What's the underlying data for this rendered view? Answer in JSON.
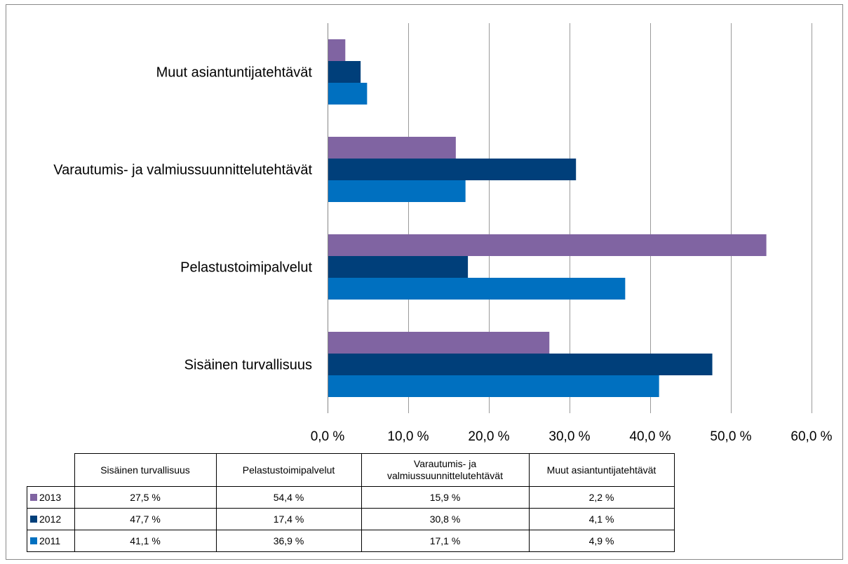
{
  "chart_data": {
    "type": "bar",
    "orientation": "horizontal",
    "categories": [
      "Sisäinen turvallisuus",
      "Pelastustoimipalvelut",
      "Varautumis- ja valmiussuunnittelutehtävät",
      "Muut asiantuntijatehtävät"
    ],
    "table_headers": [
      "Sisäinen turvallisuus",
      "Pelastustoimipalvelut",
      "Varautumis- ja valmiussuunnittelutehtävät",
      "Muut asiantuntijatehtävät"
    ],
    "series": [
      {
        "name": "2013",
        "color": "#8064a2",
        "values": [
          27.5,
          54.4,
          15.9,
          2.2
        ],
        "labels": [
          "27,5 %",
          "54,4 %",
          "15,9 %",
          "2,2 %"
        ]
      },
      {
        "name": "2012",
        "color": "#003f7a",
        "values": [
          47.7,
          17.4,
          30.8,
          4.1
        ],
        "labels": [
          "47,7 %",
          "17,4 %",
          "30,8 %",
          "4,1 %"
        ]
      },
      {
        "name": "2011",
        "color": "#0070c0",
        "values": [
          41.1,
          36.9,
          17.1,
          4.9
        ],
        "labels": [
          "41,1 %",
          "36,9 %",
          "17,1 %",
          "4,9 %"
        ]
      }
    ],
    "xlim": [
      0,
      60
    ],
    "ticks": [
      0,
      10,
      20,
      30,
      40,
      50,
      60
    ],
    "tick_labels": [
      "0,0 %",
      "10,0 %",
      "20,0 %",
      "30,0 %",
      "40,0 %",
      "50,0 %",
      "60,0 %"
    ],
    "grid": "vertical",
    "legend": "data-table",
    "title": "",
    "xlabel": "",
    "ylabel": ""
  }
}
